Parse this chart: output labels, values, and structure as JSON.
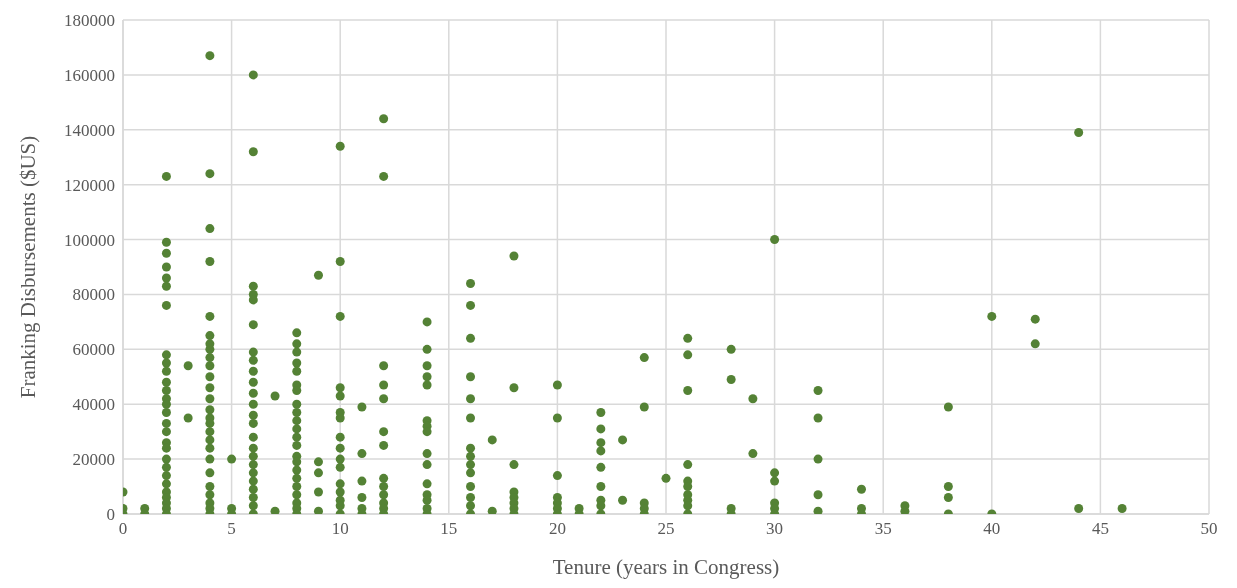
{
  "chart_data": {
    "type": "scatter",
    "xlabel": "Tenure (years in Congress)",
    "ylabel": "Franking Disbursements ($US)",
    "xlim": [
      0,
      50
    ],
    "xticks": [
      0,
      5,
      10,
      15,
      20,
      25,
      30,
      35,
      40,
      45,
      50
    ],
    "ylim": [
      0,
      180000
    ],
    "yticks": [
      0,
      20000,
      40000,
      60000,
      80000,
      100000,
      120000,
      140000,
      160000,
      180000
    ],
    "grid": true,
    "marker": "circle",
    "series": [
      {
        "color": "#548235",
        "x": [
          0,
          0,
          0,
          1,
          1,
          2,
          2,
          2,
          2,
          2,
          2,
          2,
          2,
          2,
          2,
          2,
          2,
          2,
          2,
          2,
          2,
          2,
          2,
          2,
          2,
          2,
          2,
          2,
          2,
          2,
          2,
          2,
          2,
          3,
          3,
          4,
          4,
          4,
          4,
          4,
          4,
          4,
          4,
          4,
          4,
          4,
          4,
          4,
          4,
          4,
          4,
          4,
          4,
          4,
          4,
          4,
          4,
          4,
          4,
          4,
          4,
          5,
          5,
          5,
          6,
          6,
          6,
          6,
          6,
          6,
          6,
          6,
          6,
          6,
          6,
          6,
          6,
          6,
          6,
          6,
          6,
          6,
          6,
          6,
          6,
          6,
          6,
          6,
          7,
          7,
          8,
          8,
          8,
          8,
          8,
          8,
          8,
          8,
          8,
          8,
          8,
          8,
          8,
          8,
          8,
          8,
          8,
          8,
          8,
          8,
          8,
          8,
          9,
          9,
          9,
          9,
          9,
          10,
          10,
          10,
          10,
          10,
          10,
          10,
          10,
          10,
          10,
          10,
          10,
          10,
          10,
          10,
          10,
          11,
          11,
          11,
          11,
          11,
          11,
          12,
          12,
          12,
          12,
          12,
          12,
          12,
          12,
          12,
          12,
          12,
          12,
          12,
          14,
          14,
          14,
          14,
          14,
          14,
          14,
          14,
          14,
          14,
          14,
          14,
          14,
          14,
          14,
          16,
          16,
          16,
          16,
          16,
          16,
          16,
          16,
          16,
          16,
          16,
          16,
          16,
          16,
          17,
          17,
          18,
          18,
          18,
          18,
          18,
          18,
          18,
          18,
          20,
          20,
          20,
          20,
          20,
          20,
          20,
          21,
          21,
          22,
          22,
          22,
          22,
          22,
          22,
          22,
          22,
          22,
          23,
          23,
          24,
          24,
          24,
          24,
          24,
          25,
          26,
          26,
          26,
          26,
          26,
          26,
          26,
          26,
          26,
          26,
          28,
          28,
          28,
          28,
          29,
          29,
          30,
          30,
          30,
          30,
          30,
          30,
          32,
          32,
          32,
          32,
          32,
          34,
          34,
          34,
          36,
          36,
          38,
          38,
          38,
          38,
          40,
          40,
          42,
          42,
          44,
          44,
          46
        ],
        "values": [
          8000,
          2000,
          0,
          2000,
          0,
          123000,
          99000,
          95000,
          90000,
          86000,
          83000,
          76000,
          58000,
          55000,
          52000,
          48000,
          45000,
          42000,
          40000,
          37000,
          33000,
          30000,
          26000,
          24000,
          20000,
          17000,
          14000,
          11000,
          8000,
          6000,
          4000,
          2000,
          0,
          54000,
          35000,
          167000,
          124000,
          104000,
          92000,
          72000,
          65000,
          62000,
          60000,
          57000,
          54000,
          50000,
          46000,
          42000,
          38000,
          35000,
          33000,
          30000,
          27000,
          24000,
          20000,
          15000,
          10000,
          7000,
          4000,
          2000,
          0,
          20000,
          2000,
          0,
          160000,
          132000,
          83000,
          80000,
          78000,
          69000,
          59000,
          56000,
          52000,
          48000,
          44000,
          40000,
          36000,
          33000,
          28000,
          24000,
          21000,
          18000,
          15000,
          12000,
          9000,
          6000,
          3000,
          0,
          43000,
          1000,
          66000,
          62000,
          59000,
          55000,
          52000,
          47000,
          45000,
          40000,
          37000,
          34000,
          31000,
          28000,
          25000,
          21000,
          19000,
          16000,
          13000,
          10000,
          7000,
          4000,
          2000,
          0,
          87000,
          19000,
          15000,
          8000,
          1000,
          134000,
          92000,
          72000,
          46000,
          43000,
          37000,
          35000,
          28000,
          24000,
          20000,
          17000,
          11000,
          8000,
          5000,
          3000,
          0,
          39000,
          22000,
          12000,
          6000,
          2000,
          0,
          144000,
          123000,
          54000,
          47000,
          42000,
          30000,
          25000,
          13000,
          10000,
          7000,
          4000,
          2000,
          0,
          70000,
          60000,
          54000,
          50000,
          47000,
          34000,
          32000,
          30000,
          22000,
          18000,
          11000,
          7000,
          5000,
          2000,
          0,
          84000,
          76000,
          64000,
          50000,
          42000,
          35000,
          24000,
          21000,
          18000,
          15000,
          10000,
          6000,
          3000,
          0,
          27000,
          1000,
          94000,
          46000,
          18000,
          8000,
          6000,
          4000,
          2000,
          0,
          47000,
          35000,
          14000,
          6000,
          4000,
          2000,
          0,
          2000,
          0,
          37000,
          31000,
          26000,
          23000,
          17000,
          10000,
          5000,
          3000,
          0,
          27000,
          5000,
          57000,
          39000,
          4000,
          2000,
          0,
          13000,
          64000,
          58000,
          45000,
          18000,
          12000,
          10000,
          7000,
          5000,
          3000,
          0,
          60000,
          49000,
          2000,
          0,
          42000,
          22000,
          100000,
          15000,
          12000,
          4000,
          2000,
          0,
          45000,
          35000,
          20000,
          7000,
          1000,
          9000,
          2000,
          0,
          3000,
          1000,
          39000,
          10000,
          6000,
          0,
          72000,
          0,
          71000,
          62000,
          139000,
          2000,
          2000
        ]
      }
    ]
  }
}
